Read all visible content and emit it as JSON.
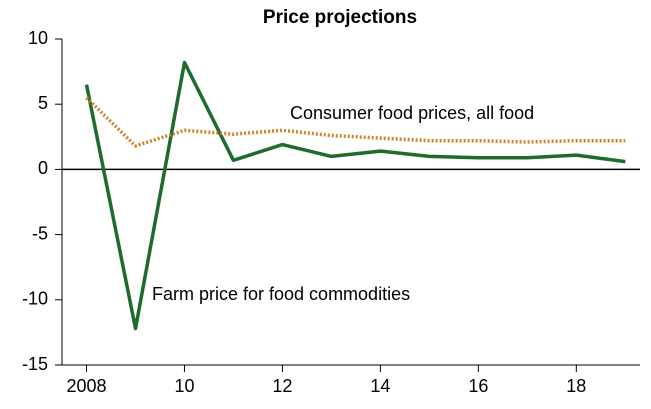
{
  "chart_data": {
    "type": "line",
    "title": "Price projections",
    "x": [
      2008,
      2009,
      2010,
      2011,
      2012,
      2013,
      2014,
      2015,
      2016,
      2017,
      2018,
      2019
    ],
    "series": [
      {
        "name": "Farm price for food commodities",
        "color": "#1e6b2e",
        "values": [
          6.5,
          -12.2,
          8.2,
          0.7,
          1.9,
          1.0,
          1.4,
          1.0,
          0.9,
          0.9,
          1.1,
          0.6
        ]
      },
      {
        "name": "Consumer food prices, all food",
        "color": "#d4822a",
        "values": [
          5.5,
          1.8,
          3.0,
          2.7,
          3.0,
          2.6,
          2.4,
          2.2,
          2.2,
          2.1,
          2.2,
          2.2
        ]
      }
    ],
    "xlim": [
      2007.5,
      2019.3
    ],
    "xticks": [
      {
        "value": 2008,
        "label": "2008"
      },
      {
        "value": 2010,
        "label": "10"
      },
      {
        "value": 2012,
        "label": "12"
      },
      {
        "value": 2014,
        "label": "14"
      },
      {
        "value": 2016,
        "label": "16"
      },
      {
        "value": 2018,
        "label": "18"
      }
    ],
    "ylim": [
      -15,
      10
    ],
    "yticks": [
      -15,
      -10,
      -5,
      0,
      5,
      10
    ],
    "grid": false
  }
}
